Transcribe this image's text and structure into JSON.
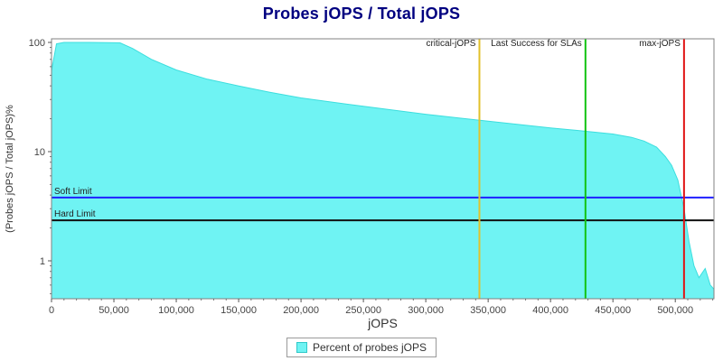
{
  "chart_data": {
    "type": "area",
    "title": "Probes jOPS / Total jOPS",
    "xlabel": "jOPS",
    "ylabel": "(Probes jOPS / Total jOPS)%",
    "x_axis": {
      "min": 0,
      "max": 531000,
      "ticks": [
        0,
        50000,
        100000,
        150000,
        200000,
        250000,
        300000,
        350000,
        400000,
        450000,
        500000
      ],
      "tick_labels": [
        "0",
        "50,000",
        "100,000",
        "150,000",
        "200,000",
        "250,000",
        "300,000",
        "350,000",
        "400,000",
        "450,000",
        "500,000"
      ]
    },
    "y_axis": {
      "scale": "log",
      "min": 0.45,
      "max": 108,
      "ticks": [
        1,
        10,
        100
      ],
      "tick_labels": [
        "1",
        "10",
        "100"
      ]
    },
    "series": [
      {
        "name": "Percent of probes jOPS",
        "type": "area",
        "fill_color": "#6FF3F3",
        "edge_color": "#3CDEDE",
        "x": [
          0,
          4000,
          10000,
          30000,
          55000,
          65000,
          80000,
          100000,
          125000,
          150000,
          175000,
          200000,
          250000,
          300000,
          350000,
          400000,
          425000,
          450000,
          465000,
          475000,
          485000,
          492000,
          497000,
          502000,
          507000,
          511000,
          515000,
          519000,
          524000,
          528000,
          531000
        ],
        "y": [
          55,
          97,
          100,
          100,
          99,
          88,
          70,
          56,
          46,
          40,
          35,
          31,
          26,
          22,
          19,
          16.5,
          15.5,
          14.5,
          13.5,
          12.5,
          11,
          9,
          7.5,
          5.5,
          3,
          1.5,
          0.9,
          0.7,
          0.85,
          0.6,
          0.55
        ]
      }
    ],
    "vlines": [
      {
        "label": "critical-jOPS",
        "x": 343000,
        "color": "#E2C12B"
      },
      {
        "label": "Last Success for SLAs",
        "x": 428000,
        "color": "#12C312"
      },
      {
        "label": "max-jOPS",
        "x": 507000,
        "color": "#E01414"
      }
    ],
    "hlines": [
      {
        "label": "Soft Limit",
        "y": 3.8,
        "color": "#1F1FFF"
      },
      {
        "label": "Hard Limit",
        "y": 2.35,
        "color": "#101010"
      }
    ],
    "legend": {
      "label": "Percent of probes jOPS",
      "swatch_color": "#6FF3F3"
    }
  }
}
